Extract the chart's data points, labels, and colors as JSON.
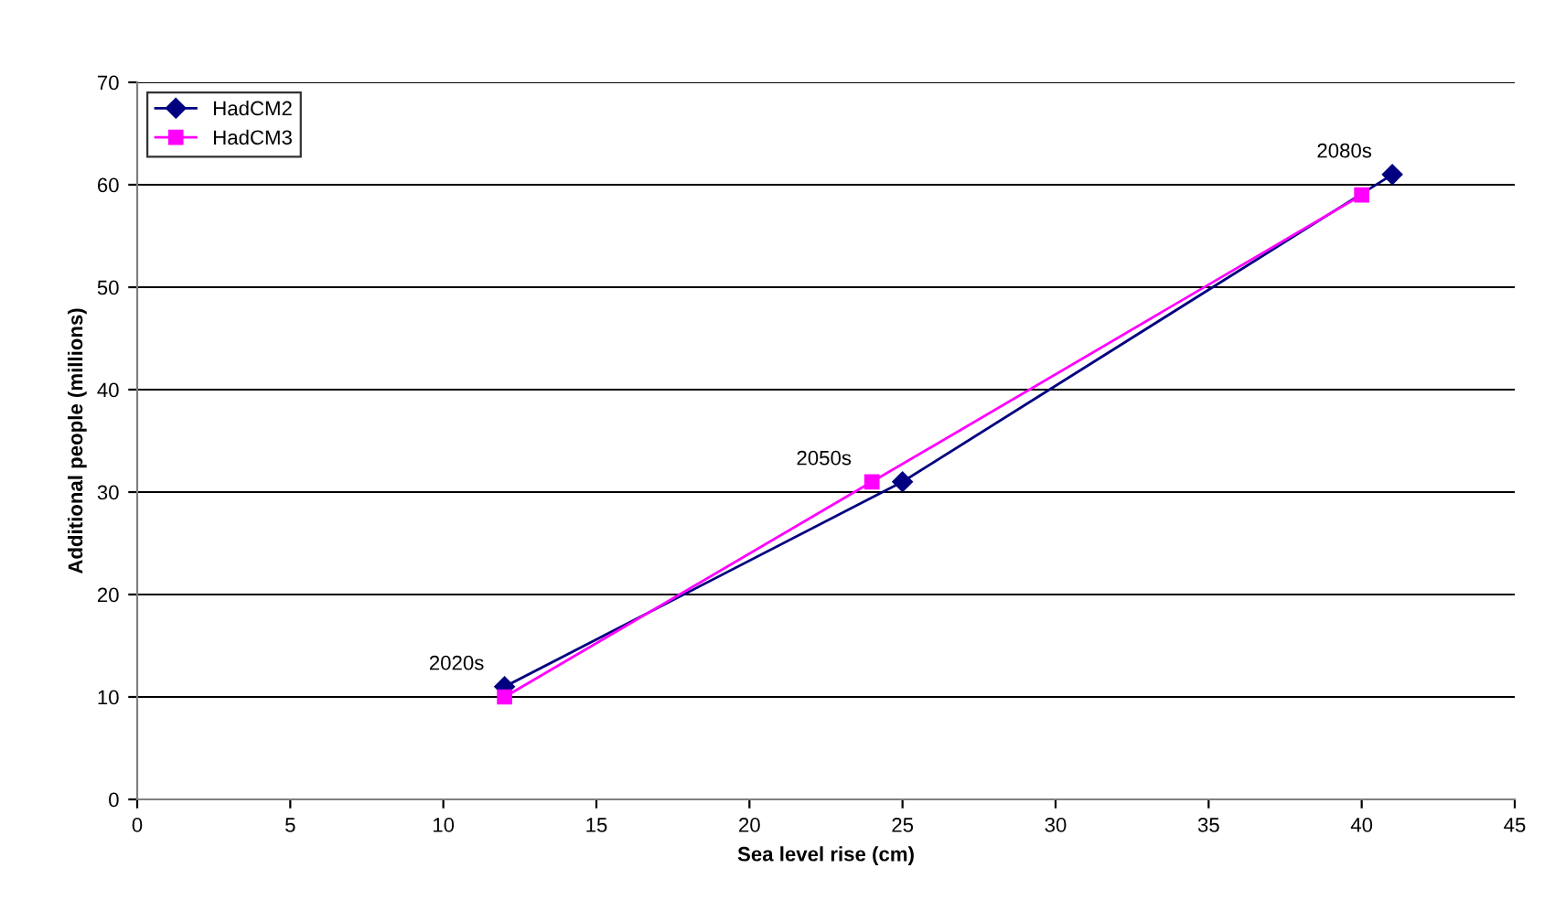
{
  "chart_data": {
    "type": "line",
    "xlabel": "Sea level rise (cm)",
    "ylabel": "Additional people (millions)",
    "series": [
      {
        "name": "HadCM2",
        "color": "#000080",
        "marker": "diamond",
        "x": [
          12,
          25,
          41
        ],
        "values": [
          11,
          31,
          61
        ]
      },
      {
        "name": "HadCM3",
        "color": "#ff00ff",
        "marker": "square",
        "x": [
          12,
          24,
          40
        ],
        "values": [
          10,
          31,
          59
        ]
      }
    ],
    "annotations": [
      {
        "text": "2020s",
        "x": 12,
        "y": 11
      },
      {
        "text": "2050s",
        "x": 24,
        "y": 31
      },
      {
        "text": "2080s",
        "x": 41,
        "y": 61
      }
    ],
    "xlim": [
      0,
      45
    ],
    "xticks": [
      0,
      5,
      10,
      15,
      20,
      25,
      30,
      35,
      40,
      45
    ],
    "ylim": [
      0,
      70
    ],
    "yticks": [
      0,
      10,
      20,
      30,
      40,
      50,
      60,
      70
    ],
    "grid": "y",
    "legend": "top left"
  }
}
